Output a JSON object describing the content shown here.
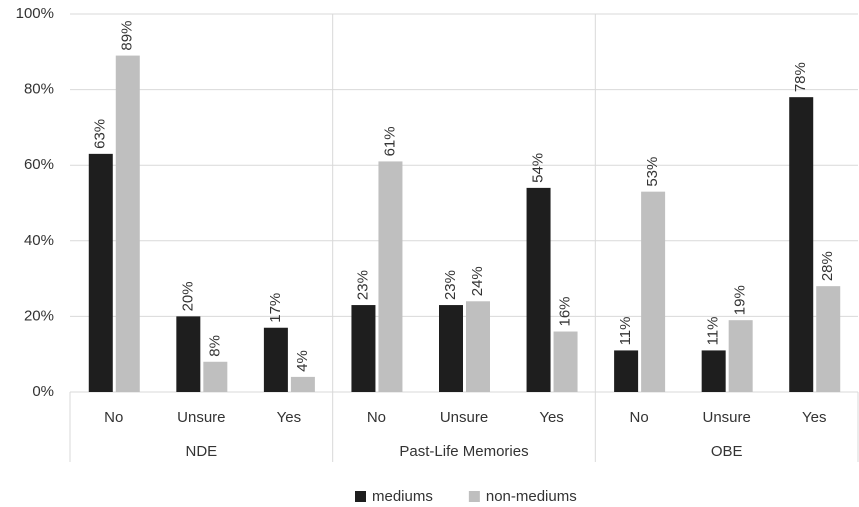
{
  "chart_data": {
    "type": "bar",
    "categories": [
      "No",
      "Unsure",
      "Yes",
      "No",
      "Unsure",
      "Yes",
      "No",
      "Unsure",
      "Yes"
    ],
    "group_labels": [
      "NDE",
      "Past-Life Memories",
      "OBE"
    ],
    "series": [
      {
        "name": "mediums",
        "color": "#1e1e1e",
        "values": [
          63,
          20,
          17,
          23,
          23,
          54,
          11,
          11,
          78
        ],
        "value_labels": [
          "63%",
          "20%",
          "17%",
          "23%",
          "23%",
          "54%",
          "11%",
          "11%",
          "78%"
        ]
      },
      {
        "name": "non-mediums",
        "color": "#bfbfbf",
        "values": [
          89,
          8,
          4,
          61,
          24,
          16,
          53,
          19,
          28
        ],
        "value_labels": [
          "89%",
          "8%",
          "4%",
          "61%",
          "24%",
          "16%",
          "53%",
          "19%",
          "28%"
        ]
      }
    ],
    "ylim": [
      0,
      100
    ],
    "yticks": [
      {
        "value": 0,
        "label": "0%"
      },
      {
        "value": 20,
        "label": "20%"
      },
      {
        "value": 40,
        "label": "40%"
      },
      {
        "value": 60,
        "label": "60%"
      },
      {
        "value": 80,
        "label": "80%"
      },
      {
        "value": 100,
        "label": "100%"
      }
    ],
    "grid": true,
    "legend": "bottom"
  }
}
